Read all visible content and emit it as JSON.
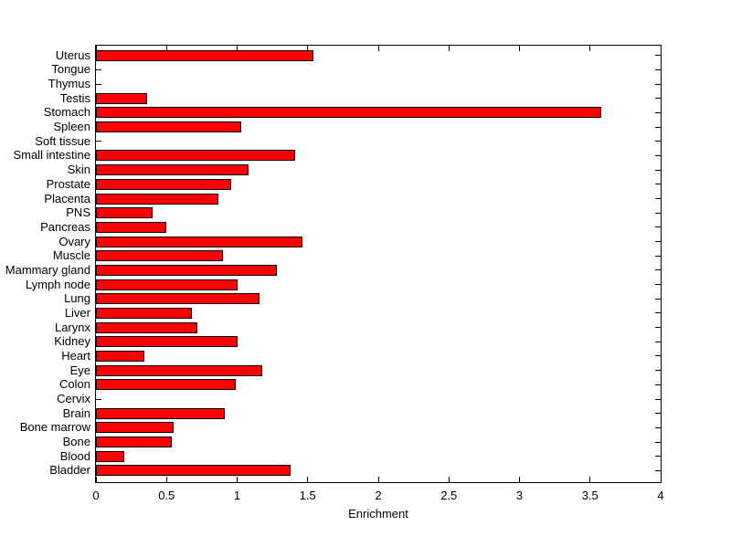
{
  "chart_data": {
    "type": "bar",
    "orientation": "horizontal",
    "title": "",
    "xlabel": "Enrichment",
    "ylabel": "",
    "xlim": [
      0,
      4
    ],
    "xticks": [
      0,
      0.5,
      1,
      1.5,
      2,
      2.5,
      3,
      3.5,
      4
    ],
    "xtick_labels": [
      "0",
      "0.5",
      "1",
      "1.5",
      "2",
      "2.5",
      "3",
      "3.5",
      "4"
    ],
    "grid": false,
    "legend": null,
    "bar_color": "#ff0000",
    "bar_edge_color": "#000000",
    "axis_color": "#000000",
    "background_color": "#ffffff",
    "categories": [
      "Uterus",
      "Tongue",
      "Thymus",
      "Testis",
      "Stomach",
      "Spleen",
      "Soft tissue",
      "Small intestine",
      "Skin",
      "Prostate",
      "Placenta",
      "PNS",
      "Pancreas",
      "Ovary",
      "Muscle",
      "Mammary gland",
      "Lymph node",
      "Lung",
      "Liver",
      "Larynx",
      "Kidney",
      "Heart",
      "Eye",
      "Colon",
      "Cervix",
      "Brain",
      "Bone marrow",
      "Bone",
      "Blood",
      "Bladder"
    ],
    "values": [
      1.54,
      0,
      0,
      0.36,
      3.58,
      1.03,
      0,
      1.41,
      1.08,
      0.96,
      0.87,
      0.4,
      0.5,
      1.46,
      0.9,
      1.28,
      1.0,
      1.16,
      0.68,
      0.72,
      1.0,
      0.34,
      1.18,
      0.99,
      0,
      0.91,
      0.55,
      0.54,
      0.2,
      1.38
    ]
  }
}
